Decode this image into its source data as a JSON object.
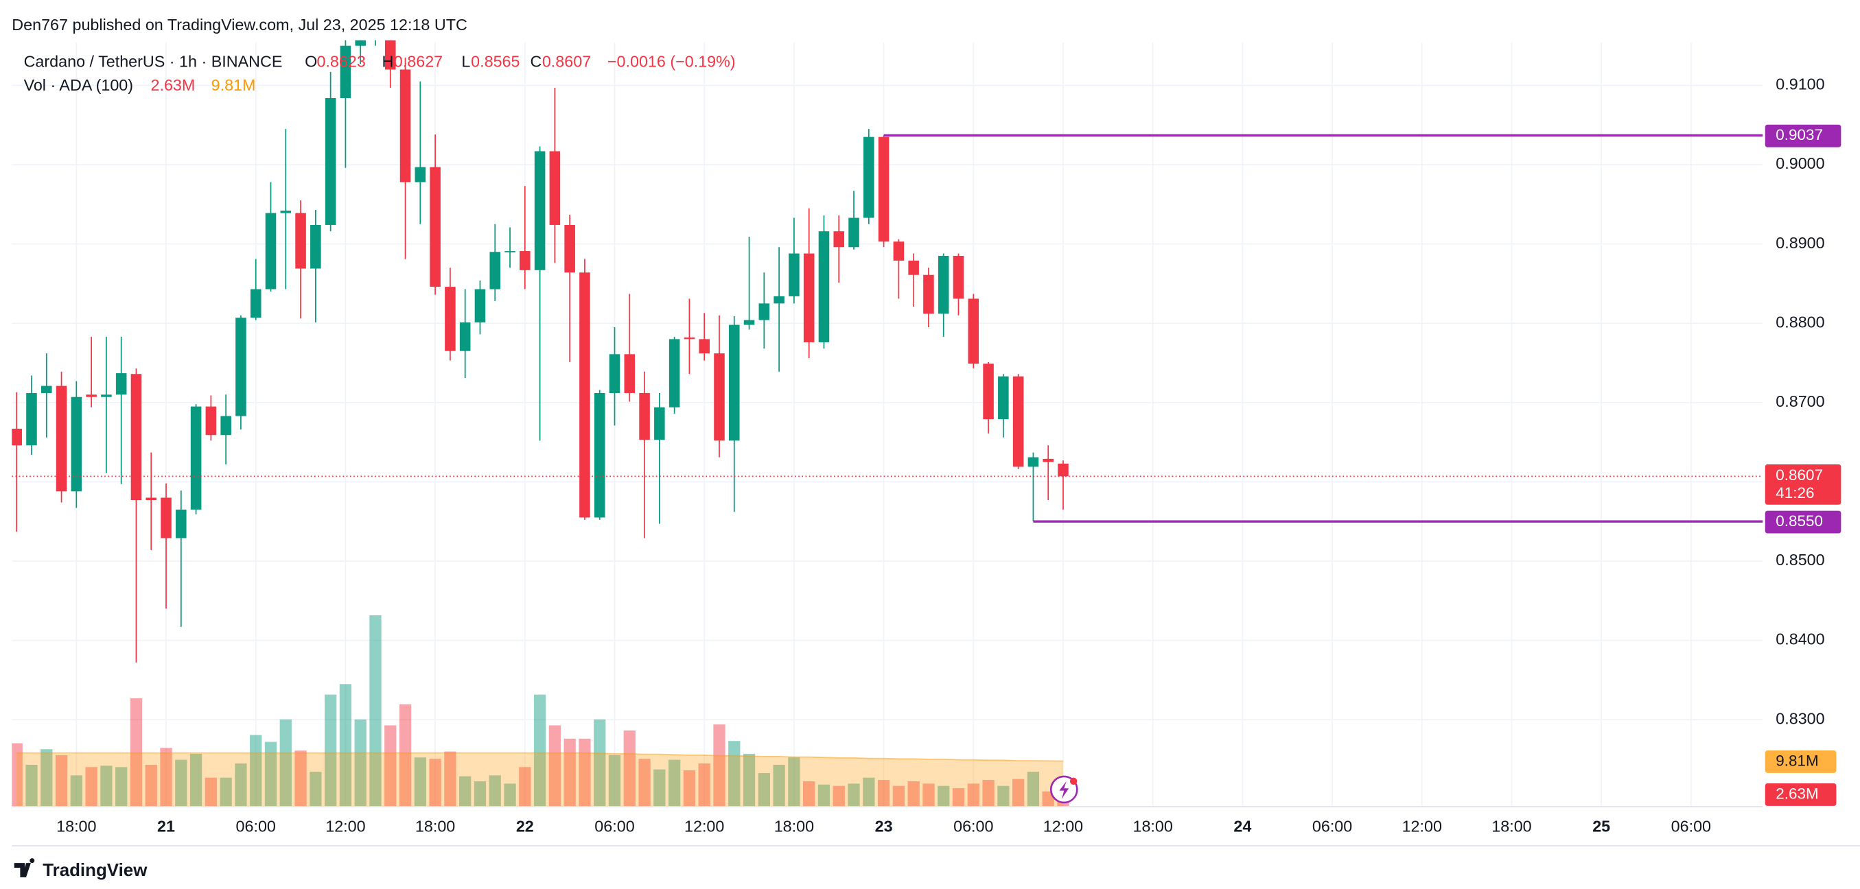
{
  "header": "Den767 published on TradingView.com, Jul 23, 2025 12:18 UTC",
  "footer": "TradingView",
  "chart_data": {
    "type": "candlestick",
    "title": "Cardano / TetherUS · 1h · BINANCE",
    "ohlc_labels": [
      "O",
      "H",
      "L",
      "C"
    ],
    "change_label": "−0.0016 (−0.19%)",
    "countdown": "41:26",
    "up_color": "#089981",
    "down_color": "#f23645",
    "grid": true,
    "x": [
      "Jul 20 14:00",
      "Jul 20 15:00",
      "Jul 20 16:00",
      "Jul 20 17:00",
      "Jul 20 18:00",
      "Jul 20 19:00",
      "Jul 20 20:00",
      "Jul 20 21:00",
      "Jul 20 22:00",
      "Jul 20 23:00",
      "Jul 21 00:00",
      "Jul 21 01:00",
      "Jul 21 02:00",
      "Jul 21 03:00",
      "Jul 21 04:00",
      "Jul 21 05:00",
      "Jul 21 06:00",
      "Jul 21 07:00",
      "Jul 21 08:00",
      "Jul 21 09:00",
      "Jul 21 10:00",
      "Jul 21 11:00",
      "Jul 21 12:00",
      "Jul 21 13:00",
      "Jul 21 14:00",
      "Jul 21 15:00",
      "Jul 21 16:00",
      "Jul 21 17:00",
      "Jul 21 18:00",
      "Jul 21 19:00",
      "Jul 21 20:00",
      "Jul 21 21:00",
      "Jul 21 22:00",
      "Jul 21 23:00",
      "Jul 22 00:00",
      "Jul 22 01:00",
      "Jul 22 02:00",
      "Jul 22 03:00",
      "Jul 22 04:00",
      "Jul 22 05:00",
      "Jul 22 06:00",
      "Jul 22 07:00",
      "Jul 22 08:00",
      "Jul 22 09:00",
      "Jul 22 10:00",
      "Jul 22 11:00",
      "Jul 22 12:00",
      "Jul 22 13:00",
      "Jul 22 14:00",
      "Jul 22 15:00",
      "Jul 22 16:00",
      "Jul 22 17:00",
      "Jul 22 18:00",
      "Jul 22 19:00",
      "Jul 22 20:00",
      "Jul 22 21:00",
      "Jul 22 22:00",
      "Jul 22 23:00",
      "Jul 23 00:00",
      "Jul 23 01:00",
      "Jul 23 02:00",
      "Jul 23 03:00",
      "Jul 23 04:00",
      "Jul 23 05:00",
      "Jul 23 06:00",
      "Jul 23 07:00",
      "Jul 23 08:00",
      "Jul 23 09:00",
      "Jul 23 10:00",
      "Jul 23 11:00",
      "Jul 23 12:00"
    ],
    "open": [
      0.8667,
      0.8646,
      0.8712,
      0.8721,
      0.8588,
      0.871,
      0.8707,
      0.871,
      0.8736,
      0.858,
      0.858,
      0.8529,
      0.8565,
      0.8695,
      0.8659,
      0.8683,
      0.8807,
      0.8843,
      0.8939,
      0.8939,
      0.8869,
      0.8924,
      0.9084,
      0.915,
      0.9157,
      0.9157,
      0.912,
      0.8978,
      0.8997,
      0.8846,
      0.8765,
      0.8801,
      0.8843,
      0.889,
      0.8891,
      0.8867,
      0.9017,
      0.8924,
      0.8864,
      0.8555,
      0.8712,
      0.8761,
      0.8712,
      0.8653,
      0.8694,
      0.8782,
      0.878,
      0.8762,
      0.8652,
      0.8798,
      0.8804,
      0.8825,
      0.8834,
      0.8888,
      0.8776,
      0.8916,
      0.8896,
      0.8933,
      0.9035,
      0.8903,
      0.8879,
      0.8861,
      0.8812,
      0.8885,
      0.8831,
      0.8749,
      0.8679,
      0.8733,
      0.8619,
      0.8629,
      0.8623
    ],
    "high": [
      0.8713,
      0.8734,
      0.8762,
      0.8739,
      0.8727,
      0.8783,
      0.8783,
      0.8783,
      0.8743,
      0.8637,
      0.8598,
      0.8589,
      0.8698,
      0.8709,
      0.871,
      0.881,
      0.8881,
      0.8978,
      0.9045,
      0.8955,
      0.8943,
      0.9117,
      0.916,
      0.916,
      0.916,
      0.916,
      0.9135,
      0.9105,
      0.9038,
      0.887,
      0.8843,
      0.8854,
      0.8925,
      0.8921,
      0.8973,
      0.9023,
      0.9097,
      0.8937,
      0.8881,
      0.8716,
      0.8795,
      0.8837,
      0.8739,
      0.8712,
      0.8783,
      0.8831,
      0.8813,
      0.881,
      0.8809,
      0.8909,
      0.8864,
      0.8896,
      0.8933,
      0.8945,
      0.8936,
      0.8936,
      0.8967,
      0.9045,
      0.9037,
      0.8906,
      0.8888,
      0.887,
      0.8888,
      0.8888,
      0.8837,
      0.8751,
      0.8736,
      0.8736,
      0.8637,
      0.8646,
      0.8627
    ],
    "low": [
      0.8537,
      0.8634,
      0.8656,
      0.8574,
      0.8567,
      0.8694,
      0.8611,
      0.8597,
      0.8372,
      0.8514,
      0.844,
      0.8417,
      0.8559,
      0.8652,
      0.8622,
      0.8666,
      0.8804,
      0.884,
      0.8843,
      0.8806,
      0.8801,
      0.8916,
      0.8996,
      0.9127,
      0.915,
      0.9097,
      0.8881,
      0.8925,
      0.8836,
      0.8753,
      0.8731,
      0.8786,
      0.8828,
      0.887,
      0.8843,
      0.8652,
      0.8876,
      0.8751,
      0.8552,
      0.8552,
      0.8671,
      0.8701,
      0.8529,
      0.8547,
      0.8686,
      0.8736,
      0.8753,
      0.8631,
      0.8562,
      0.8792,
      0.8768,
      0.8739,
      0.8825,
      0.8756,
      0.8768,
      0.8851,
      0.8893,
      0.8925,
      0.8896,
      0.8831,
      0.8821,
      0.8795,
      0.8783,
      0.881,
      0.8743,
      0.8661,
      0.8656,
      0.8616,
      0.855,
      0.8577,
      0.8565
    ],
    "close": [
      0.8646,
      0.8712,
      0.8721,
      0.8588,
      0.8707,
      0.8707,
      0.871,
      0.8737,
      0.8577,
      0.8577,
      0.8529,
      0.8565,
      0.8695,
      0.8659,
      0.8683,
      0.8807,
      0.8843,
      0.8939,
      0.8942,
      0.8869,
      0.8924,
      0.9084,
      0.915,
      0.9157,
      0.916,
      0.912,
      0.8978,
      0.8997,
      0.8846,
      0.8765,
      0.8801,
      0.8843,
      0.889,
      0.8891,
      0.8867,
      0.9017,
      0.8924,
      0.8864,
      0.8555,
      0.8712,
      0.8761,
      0.8712,
      0.8653,
      0.8694,
      0.878,
      0.878,
      0.8762,
      0.8652,
      0.8798,
      0.8804,
      0.8825,
      0.8834,
      0.8888,
      0.8776,
      0.8916,
      0.8896,
      0.8933,
      0.9035,
      0.8903,
      0.8879,
      0.8861,
      0.8812,
      0.8885,
      0.8831,
      0.8749,
      0.8679,
      0.8733,
      0.8619,
      0.8631,
      0.8625,
      0.8607
    ],
    "ylim": [
      0.8191,
      0.9154
    ],
    "yticks": [
      {
        "value": 0.91,
        "label": "0.9100"
      },
      {
        "value": 0.9,
        "label": "0.9000"
      },
      {
        "value": 0.89,
        "label": "0.8900"
      },
      {
        "value": 0.88,
        "label": "0.8800"
      },
      {
        "value": 0.87,
        "label": "0.8700"
      },
      {
        "value": 0.86,
        "label": "0.8600"
      },
      {
        "value": 0.85,
        "label": "0.8500"
      },
      {
        "value": 0.84,
        "label": "0.8400"
      },
      {
        "value": 0.83,
        "label": "0.8300"
      }
    ],
    "xlim": [
      "Jul 20 14:00",
      "Jul 25 10:00"
    ],
    "xticks": [
      {
        "value": "Jul 20 18:00",
        "label": "18:00"
      },
      {
        "value": "Jul 21 00:00",
        "label": "21"
      },
      {
        "value": "Jul 21 06:00",
        "label": "06:00"
      },
      {
        "value": "Jul 21 12:00",
        "label": "12:00"
      },
      {
        "value": "Jul 21 18:00",
        "label": "18:00"
      },
      {
        "value": "Jul 22 00:00",
        "label": "22"
      },
      {
        "value": "Jul 22 06:00",
        "label": "06:00"
      },
      {
        "value": "Jul 22 12:00",
        "label": "12:00"
      },
      {
        "value": "Jul 22 18:00",
        "label": "18:00"
      },
      {
        "value": "Jul 23 00:00",
        "label": "23"
      },
      {
        "value": "Jul 23 06:00",
        "label": "06:00"
      },
      {
        "value": "Jul 23 12:00",
        "label": "12:00"
      },
      {
        "value": "Jul 23 18:00",
        "label": "18:00"
      },
      {
        "value": "Jul 24 00:00",
        "label": "24"
      },
      {
        "value": "Jul 24 06:00",
        "label": "06:00"
      },
      {
        "value": "Jul 24 12:00",
        "label": "12:00"
      },
      {
        "value": "Jul 24 18:00",
        "label": "18:00"
      },
      {
        "value": "Jul 25 00:00",
        "label": "25"
      },
      {
        "value": "Jul 25 06:00",
        "label": "06:00"
      }
    ],
    "levels": [
      {
        "value": 0.9037,
        "label": "0.9037",
        "from": "Jul 23 00:00",
        "color": "#9c27b0"
      },
      {
        "value": 0.855,
        "label": "0.8550",
        "from": "Jul 23 10:00",
        "color": "#9c27b0"
      }
    ],
    "volume": {
      "name": "Vol · ADA (100)",
      "last_label": "2.63M",
      "ylim": [
        0,
        42
      ],
      "values": [
        13.7,
        9.0,
        12.4,
        11.1,
        6.7,
        8.5,
        8.8,
        8.5,
        23.5,
        9.0,
        12.7,
        10.1,
        11.4,
        6.2,
        6.2,
        9.3,
        15.5,
        14.0,
        18.9,
        12.1,
        7.5,
        24.3,
        26.6,
        18.9,
        41.6,
        17.6,
        22.2,
        10.6,
        10.3,
        11.9,
        6.5,
        5.4,
        6.7,
        4.9,
        8.5,
        24.3,
        17.6,
        14.7,
        14.7,
        18.9,
        11.1,
        16.5,
        10.3,
        8.0,
        10.1,
        7.8,
        9.3,
        17.8,
        14.2,
        11.4,
        7.2,
        9.0,
        10.6,
        5.4,
        4.7,
        4.4,
        4.9,
        6.2,
        5.7,
        4.4,
        5.4,
        4.9,
        4.4,
        3.9,
        4.9,
        5.7,
        4.4,
        5.9,
        7.5,
        3.2,
        2.63
      ]
    },
    "volume_ma": {
      "last_label": "9.81M",
      "color": "#ff9800",
      "values": [
        11.6,
        11.6,
        11.6,
        11.6,
        11.6,
        11.6,
        11.6,
        11.6,
        11.6,
        11.6,
        11.6,
        11.6,
        11.6,
        11.6,
        11.6,
        11.6,
        11.6,
        11.6,
        11.6,
        11.6,
        11.6,
        11.6,
        11.6,
        11.6,
        11.6,
        11.6,
        11.6,
        11.6,
        11.6,
        11.6,
        11.6,
        11.6,
        11.6,
        11.6,
        11.6,
        11.6,
        11.6,
        11.6,
        11.6,
        11.5,
        11.4,
        11.4,
        11.3,
        11.3,
        11.2,
        11.1,
        11.1,
        11.0,
        11.0,
        10.9,
        10.8,
        10.8,
        10.7,
        10.7,
        10.6,
        10.5,
        10.5,
        10.4,
        10.4,
        10.3,
        10.3,
        10.2,
        10.2,
        10.1,
        10.1,
        10.0,
        10.0,
        9.9,
        9.9,
        9.85,
        9.81
      ]
    }
  }
}
